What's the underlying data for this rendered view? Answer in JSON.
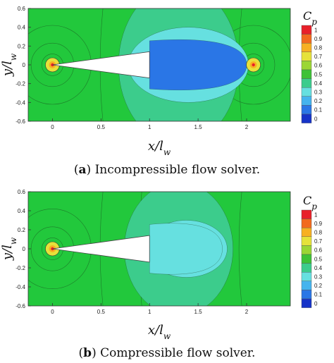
{
  "chart_data": [
    {
      "type": "heatmap",
      "panel_tag": "a",
      "caption_rest": " Incompressible flow solver.",
      "xlabel": "x/l_w",
      "ylabel": "y/l_w",
      "xlim": [
        -0.25,
        2.45
      ],
      "ylim": [
        -0.6,
        0.6
      ],
      "xticks": [
        0,
        0.5,
        1,
        1.5,
        2
      ],
      "xtick_labels": [
        "0",
        "0.5",
        "1",
        "1.5",
        "2"
      ],
      "yticks": [
        0.6,
        0.4,
        0.2,
        0,
        -0.2,
        -0.4,
        -0.6
      ],
      "ytick_labels": [
        "0.6",
        "0.4",
        "0.2",
        "0",
        "-0.2",
        "-0.4",
        "-0.6"
      ],
      "colorbar_title": "C_p",
      "colorbar_levels": [
        "1",
        "0.9",
        "0.8",
        "0.7",
        "0.6",
        "0.5",
        "0.4",
        "0.3",
        "0.2",
        "0.1",
        "0"
      ],
      "wing": {
        "tip_x": 0,
        "tip_y": 0,
        "root_x": 1,
        "root_half_width": 0.14
      },
      "wake_zone": {
        "x_start": 1,
        "x_end": 2,
        "half_height": 0.16,
        "level": 0.1
      },
      "regions": [
        {
          "name": "outer",
          "cx": 1.3,
          "rx": 0.62,
          "ry": 0.85,
          "level": 0.4
        },
        {
          "name": "mid",
          "cx": 1.4,
          "rx": 0.62,
          "ry": 0.4,
          "level": 0.3
        },
        {
          "name": "core",
          "cx": 1.45,
          "rx": 0.52,
          "ry": 0.24,
          "level": 0.15
        }
      ],
      "stagnation_points": [
        {
          "x": 0,
          "y": 0
        },
        {
          "x": 2.07,
          "y": 0
        }
      ],
      "legend": "right"
    },
    {
      "type": "heatmap",
      "panel_tag": "b",
      "caption_rest": " Compressible flow solver.",
      "xlabel": "x/l_w",
      "ylabel": "y/l_w",
      "xlim": [
        -0.25,
        2.45
      ],
      "ylim": [
        -0.6,
        0.6
      ],
      "xticks": [
        0,
        0.5,
        1,
        1.5,
        2
      ],
      "xtick_labels": [
        "0",
        "0.5",
        "1",
        "1.5",
        "2"
      ],
      "yticks": [
        0.6,
        0.4,
        0.2,
        0,
        -0.2,
        -0.4,
        -0.6
      ],
      "ytick_labels": [
        "0.6",
        "0.4",
        "0.2",
        "0",
        "-0.2",
        "-0.4",
        "-0.6"
      ],
      "colorbar_title": "C_p",
      "colorbar_levels": [
        "1",
        "0.9",
        "0.8",
        "0.7",
        "0.6",
        "0.5",
        "0.4",
        "0.3",
        "0.2",
        "0.1",
        "0"
      ],
      "wing": {
        "tip_x": 0,
        "tip_y": 0,
        "root_x": 1,
        "root_half_width": 0.14
      },
      "wake_zone": {
        "x_start": 1,
        "x_end": 1.75,
        "half_height": 0.16,
        "level": 0.3
      },
      "regions": [
        {
          "name": "outer",
          "cx": 1.3,
          "rx": 0.56,
          "ry": 0.7,
          "level": 0.4
        },
        {
          "name": "core",
          "cx": 1.38,
          "rx": 0.42,
          "ry": 0.3,
          "level": 0.3
        }
      ],
      "stagnation_points": [
        {
          "x": 0,
          "y": 0
        }
      ],
      "legend": "right"
    }
  ],
  "colors": {
    "freestream": "#22c83c",
    "level_1": "#e8202a",
    "level_0.9": "#f26a1e",
    "level_0.8": "#f7b022",
    "level_0.7": "#e6e23a",
    "level_0.6": "#9bd634",
    "level_0.5": "#3ec236",
    "level_0.4": "#3ccc8c",
    "level_0.3": "#66e0e0",
    "level_0.2": "#45b4ee",
    "level_0.1": "#2a76e6",
    "level_0": "#1633c8",
    "wing": "#ffffff",
    "contour_line": "#1a3a1a"
  }
}
